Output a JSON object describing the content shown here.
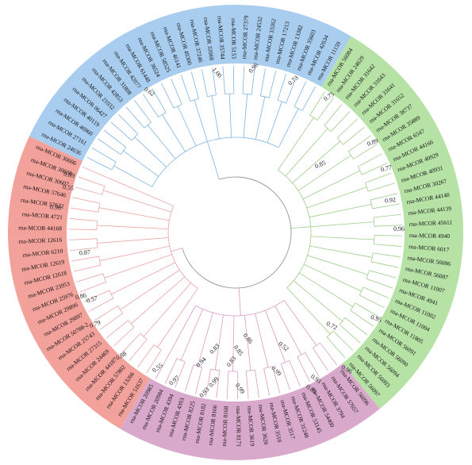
{
  "tree": {
    "groups": [
      {
        "band": "#a9cdef",
        "line": "#7db4e3",
        "leaves": [
          "rna-MCOR 24636",
          "rna-MCOR 27161",
          "rna-MCOR 46960",
          "rna-MCOR 40119",
          "rna-MCOR 06427",
          "rna-MCOR 21032",
          "rna-MCOR 42853",
          "rna-MCOR 31808",
          "rna-MCOR 42077",
          "rna-MCOR 61448",
          "rna-MCOR 36524",
          "rna-MCOR 58525",
          "rna-MCOR 46141",
          "rna-MCOR 49300",
          "rna-MCOR 37246",
          "rna-MCOR 32068",
          "rna-MCOR 35744",
          "rna-MCOR 5153",
          "rna-MCOR 27379",
          "rna-MCOR 24532",
          "rna-MCOR 33262",
          "rna-MCOR 17213",
          "rna-MCOR 13382",
          "rna-MCOR 35603",
          "rna-MCOR 42634",
          "rna-MCOR 11159"
        ]
      },
      {
        "band": "#b7e2a6",
        "line": "#9ccf8a",
        "leaves": [
          "rna-MCOR 56084",
          "rna-MCOR 24629",
          "rna-MCOR 31642",
          "rna-MCOR 31643",
          "rna-MCOR 31641",
          "rna-MCOR 31652",
          "rna-MCOR 38737",
          "rna-MCOR 35889",
          "rna-MCOR 6547",
          "rna-MCOR 44166",
          "rna-MCOR 40929",
          "rna-MCOR 40931",
          "rna-MCOR 30267",
          "rna-MCOR 44140",
          "rna-MCOR 44139",
          "rna-MCOR 45611",
          "rna-MCOR 4940",
          "rna-MCOR 6017",
          "rna-MCOR 56086",
          "rna-MCOR 56087",
          "rna-MCOR 11007",
          "rna-MCOR 4941",
          "rna-MCOR 11002",
          "rna-MCOR 11004",
          "rna-MCOR 11805",
          "rna-MCOR 56091",
          "rna-MCOR 56090",
          "rna-MCOR 56094",
          "rna-MCOR 56093",
          "rna-MCOR 56097"
        ]
      },
      {
        "band": "#d9a9cc",
        "line": "#d99cc2",
        "leaves": [
          "rna-MCOR 56096",
          "rna-MCOR 57657",
          "rna-MCOR 3794",
          "rna-MCOR 54400",
          "rna-MCOR 53145",
          "rna-MCOR 31248",
          "rna-MCOR 3517",
          "rna-MCOR 3518",
          "rna-MCOR 3620",
          "rna-MCOR 3619",
          "rna-MCOR 8171",
          "rna-MCOR 8168",
          "rna-MCOR 8166",
          "rna-MCOR 8182",
          "rna-MCOR 8225",
          "rna-MCOR 4393",
          "rna-MCOR 4394",
          "rna-MCOR 20984",
          "rna-MCOR 20985"
        ]
      },
      {
        "band": "#f3a19b",
        "line": "#eaa4a4",
        "leaves": [
          "rna-MCOR 51637",
          "rna-MCOR 13266",
          "rna-MCOR 57802",
          "rna-MCOR 44187",
          "rna-MCOR 24469",
          "rna-MCOR 27315",
          "rna-MCOR 25743",
          "rna-MCOR 50788-2",
          "rna-MCOR 29897",
          "rna-MCOR 29896",
          "rna-MCOR 25976",
          "rna-MCOR 23953",
          "rna-MCOR 12618",
          "rna-MCOR 12619",
          "rna-MCOR 6210",
          "rna-MCOR 12616",
          "rna-MCOR 44168",
          "rna-MCOR 4721",
          "rna-MCOR 57632",
          "rna-MCOR 57646",
          "rna-MCOR 30607",
          "rna-MCOR 30608",
          "rna-MCOR 30606"
        ]
      }
    ],
    "bootstrap": [
      "0.62",
      "1.00",
      "0.96",
      "0.73",
      "0.75",
      "0.89",
      "0.85",
      "0.77",
      "0.92",
      "0.96",
      "0.95",
      "0.72",
      "0.96",
      "0.93",
      "0.89",
      "0.52",
      "0.99",
      "0.86",
      "0.85",
      "0.83",
      "0.99",
      "0.83",
      "0.94",
      "0.99",
      "0.93",
      "0.97",
      "0.55",
      "0.88",
      "0.79",
      "0.57",
      "0.86",
      "0.87",
      "0.96",
      "0.55",
      "0.89"
    ]
  }
}
